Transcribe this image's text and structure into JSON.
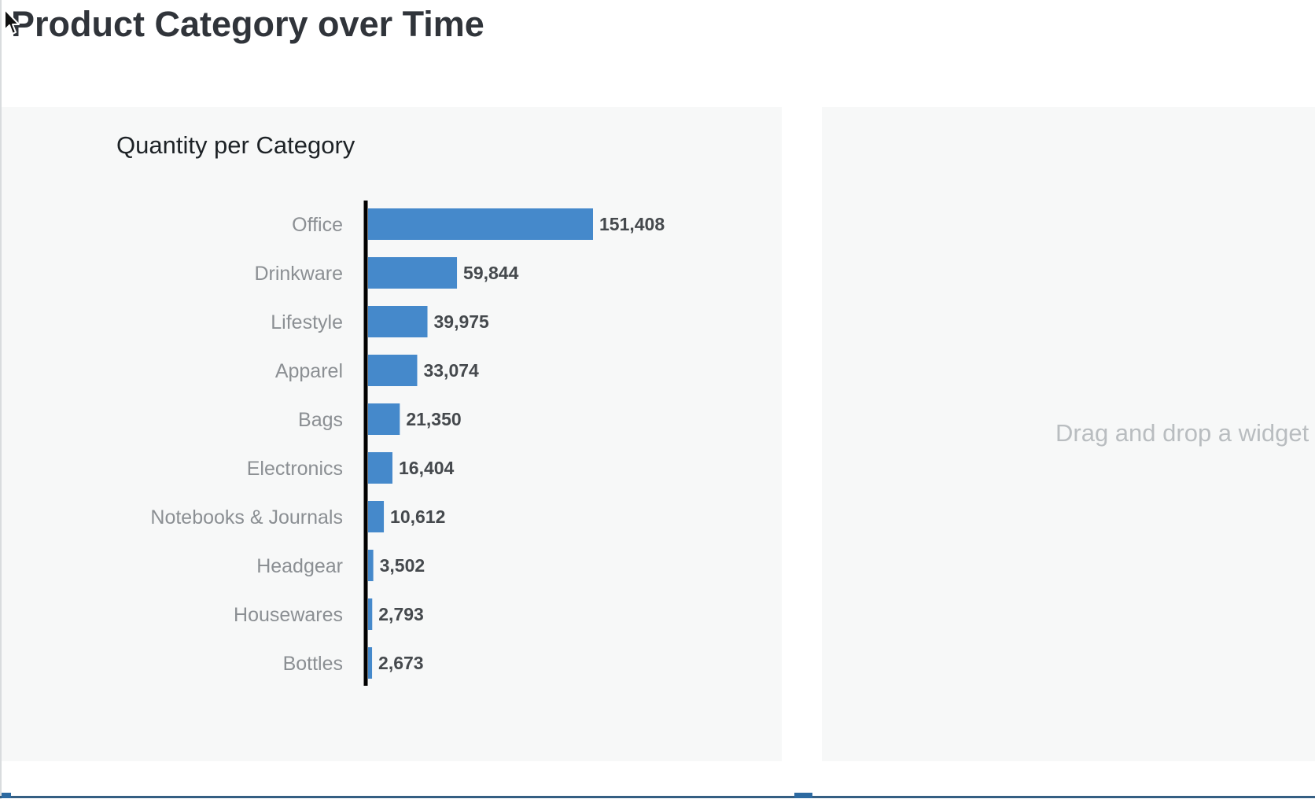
{
  "page": {
    "title": "Product Category over Time"
  },
  "widgets": {
    "left": {
      "title": "Quantity per Category"
    },
    "right": {
      "placeholder": "Drag and drop a widget"
    }
  },
  "colors": {
    "bar": "#4589cb",
    "axis": "#000000",
    "panel_background": "#f7f8f8"
  },
  "chart_data": {
    "type": "bar",
    "orientation": "horizontal",
    "title": "Quantity per Category",
    "categories": [
      "Office",
      "Drinkware",
      "Lifestyle",
      "Apparel",
      "Bags",
      "Electronics",
      "Notebooks & Journals",
      "Headgear",
      "Housewares",
      "Bottles"
    ],
    "values": [
      151408,
      59844,
      39975,
      33074,
      21350,
      16404,
      10612,
      3502,
      2793,
      2673
    ],
    "value_labels": [
      "151,408",
      "59,844",
      "39,975",
      "33,074",
      "21,350",
      "16,404",
      "10,612",
      "3,502",
      "2,793",
      "2,673"
    ],
    "xlim": [
      0,
      151408
    ],
    "grid": false,
    "legend": "none"
  }
}
